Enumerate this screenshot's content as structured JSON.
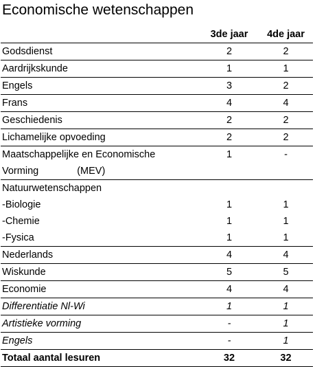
{
  "title": "Economische wetenschappen",
  "columns": {
    "subject": "",
    "year3": "3de jaar",
    "year4": "4de jaar"
  },
  "rows": [
    {
      "subject": "Godsdienst",
      "year3": "2",
      "year4": "2"
    },
    {
      "subject": "Aardrijkskunde",
      "year3": "1",
      "year4": "1"
    },
    {
      "subject": "Engels",
      "year3": "3",
      "year4": "2"
    },
    {
      "subject": "Frans",
      "year3": "4",
      "year4": "4"
    },
    {
      "subject": "Geschiedenis",
      "year3": "2",
      "year4": "2"
    },
    {
      "subject": "Lichamelijke opvoeding",
      "year3": "2",
      "year4": "2"
    },
    {
      "subject_line1": "Maatschappelijke en Economische",
      "subject_line2": "Vorming",
      "subject_code": "(MEV)",
      "year3": "1",
      "year4": "-"
    },
    {
      "group": "Natuurwetenschappen"
    },
    {
      "subject": "-Biologie",
      "year3": "1",
      "year4": "1"
    },
    {
      "subject": "-Chemie",
      "year3": "1",
      "year4": "1"
    },
    {
      "subject": "-Fysica",
      "year3": "1",
      "year4": "1"
    },
    {
      "subject": "Nederlands",
      "year3": "4",
      "year4": "4"
    },
    {
      "subject": "Wiskunde",
      "year3": "5",
      "year4": "5"
    },
    {
      "subject": "Economie",
      "year3": "4",
      "year4": "4"
    },
    {
      "subject": "Differentiatie Nl-Wi",
      "year3": "1",
      "year4": "1"
    },
    {
      "subject": "Artistieke vorming",
      "year3": "-",
      "year4": "1"
    },
    {
      "subject": "Engels",
      "year3": "-",
      "year4": "1"
    }
  ],
  "total": {
    "label": "Totaal aantal lesuren",
    "year3": "32",
    "year4": "32"
  }
}
